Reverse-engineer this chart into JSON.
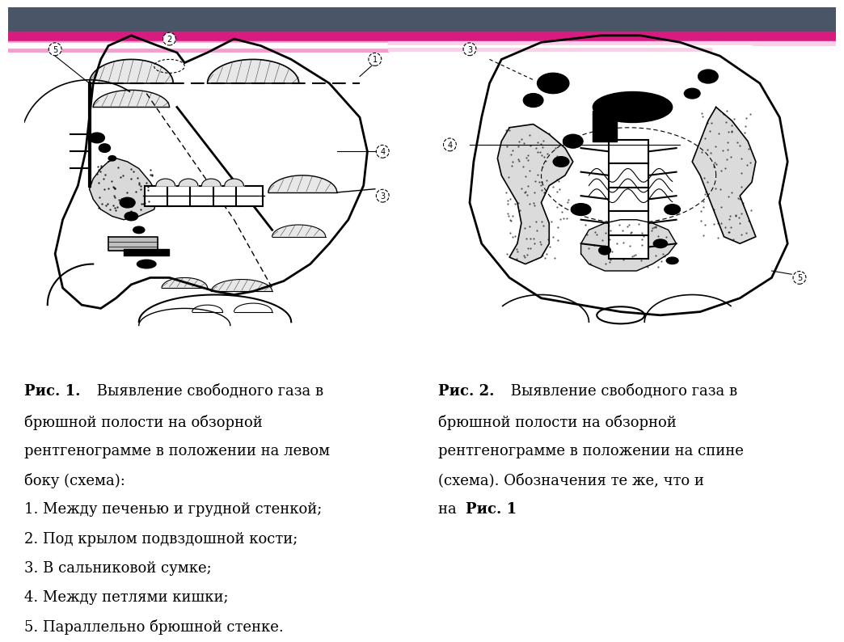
{
  "background_color": "#ffffff",
  "header_dark_color": "#4a5568",
  "header_pink_color": "#d81b7e",
  "header_light_pink": "#f0a0cc",
  "fig_width": 10.24,
  "fig_height": 7.67,
  "caption1_bold": "Рис. 1.",
  "caption2_bold": "Рис. 2.",
  "caption2_bold2": "Рис. 1",
  "lines1": [
    " Выявление свободного газа в",
    "брюшной полости на обзорной",
    "рентгенограмме в положении на левом",
    "боку (схема):",
    "1. Между печенью и грудной стенкой;",
    "2. Под крылом подвздошной кости;",
    "3. В сальниковой сумке;",
    "4. Между петлями кишки;",
    "5. Параллельно брюшной стенке."
  ],
  "lines2": [
    " Выявление свободного газа в",
    "брюшной полости на обзорной",
    "рентгенограмме в положении на спине",
    "(схема). Обозначения те же, что и",
    "на "
  ]
}
